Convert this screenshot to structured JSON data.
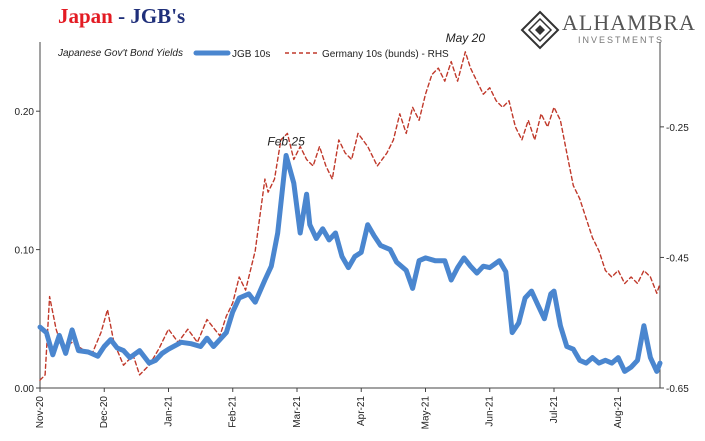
{
  "header": {
    "title_part1": "Japan",
    "title_part2": "- JGB's",
    "logo_name": "ALHAMBRA",
    "logo_sub": "INVESTMENTS"
  },
  "colors": {
    "jgb": "#4a86cf",
    "bund": "#c0392b",
    "axis": "#444444",
    "title_red": "#e31b23",
    "title_blue": "#1f2f7a"
  },
  "chart_data": {
    "type": "line",
    "subtitle": "Japanese Gov't Bond Yields",
    "legend_position": "top",
    "grid": false,
    "x_tick_labels": [
      "Nov-20",
      "Dec-20",
      "Jan-21",
      "Feb-21",
      "Mar-21",
      "Apr-21",
      "May-21",
      "Jun-21",
      "Jul-21",
      "Aug-21"
    ],
    "left_axis": {
      "ylim": [
        0.0,
        0.25
      ],
      "ticks": [
        0.0,
        0.1,
        0.2
      ],
      "tick_labels": [
        "0.00",
        "0.10",
        "0.20"
      ]
    },
    "right_axis": {
      "ylim": [
        -0.65,
        -0.12
      ],
      "ticks": [
        -0.65,
        -0.45,
        -0.25
      ],
      "tick_labels": [
        "-0.65",
        "-0.45",
        "-0.25"
      ]
    },
    "annotations": [
      {
        "text": "Feb 25",
        "x": 3.83,
        "y": 0.168,
        "axis": "left"
      },
      {
        "text": "May 20",
        "x": 6.62,
        "y": -0.135,
        "axis": "right"
      }
    ],
    "series": [
      {
        "name": "JGB 10s",
        "axis": "left",
        "style": "solid",
        "points": [
          [
            0.0,
            0.044
          ],
          [
            0.1,
            0.04
          ],
          [
            0.2,
            0.024
          ],
          [
            0.3,
            0.038
          ],
          [
            0.4,
            0.025
          ],
          [
            0.5,
            0.042
          ],
          [
            0.6,
            0.027
          ],
          [
            0.75,
            0.026
          ],
          [
            0.9,
            0.023
          ],
          [
            1.0,
            0.03
          ],
          [
            1.1,
            0.035
          ],
          [
            1.2,
            0.029
          ],
          [
            1.3,
            0.027
          ],
          [
            1.4,
            0.022
          ],
          [
            1.55,
            0.027
          ],
          [
            1.7,
            0.018
          ],
          [
            1.8,
            0.02
          ],
          [
            1.9,
            0.025
          ],
          [
            2.0,
            0.028
          ],
          [
            2.2,
            0.033
          ],
          [
            2.35,
            0.032
          ],
          [
            2.5,
            0.03
          ],
          [
            2.6,
            0.036
          ],
          [
            2.7,
            0.03
          ],
          [
            2.8,
            0.035
          ],
          [
            2.9,
            0.04
          ],
          [
            3.0,
            0.055
          ],
          [
            3.1,
            0.065
          ],
          [
            3.25,
            0.068
          ],
          [
            3.35,
            0.062
          ],
          [
            3.5,
            0.078
          ],
          [
            3.6,
            0.088
          ],
          [
            3.7,
            0.112
          ],
          [
            3.83,
            0.168
          ],
          [
            3.95,
            0.148
          ],
          [
            4.05,
            0.112
          ],
          [
            4.15,
            0.14
          ],
          [
            4.2,
            0.118
          ],
          [
            4.3,
            0.108
          ],
          [
            4.4,
            0.115
          ],
          [
            4.5,
            0.107
          ],
          [
            4.6,
            0.112
          ],
          [
            4.7,
            0.095
          ],
          [
            4.8,
            0.087
          ],
          [
            4.9,
            0.095
          ],
          [
            5.0,
            0.098
          ],
          [
            5.1,
            0.118
          ],
          [
            5.2,
            0.11
          ],
          [
            5.3,
            0.103
          ],
          [
            5.45,
            0.1
          ],
          [
            5.55,
            0.091
          ],
          [
            5.7,
            0.085
          ],
          [
            5.8,
            0.072
          ],
          [
            5.9,
            0.092
          ],
          [
            6.0,
            0.094
          ],
          [
            6.15,
            0.092
          ],
          [
            6.3,
            0.092
          ],
          [
            6.4,
            0.078
          ],
          [
            6.5,
            0.087
          ],
          [
            6.6,
            0.094
          ],
          [
            6.7,
            0.088
          ],
          [
            6.8,
            0.083
          ],
          [
            6.9,
            0.088
          ],
          [
            7.0,
            0.087
          ],
          [
            7.15,
            0.092
          ],
          [
            7.25,
            0.084
          ],
          [
            7.35,
            0.04
          ],
          [
            7.45,
            0.047
          ],
          [
            7.55,
            0.065
          ],
          [
            7.65,
            0.07
          ],
          [
            7.75,
            0.06
          ],
          [
            7.85,
            0.05
          ],
          [
            7.95,
            0.068
          ],
          [
            8.0,
            0.07
          ],
          [
            8.1,
            0.045
          ],
          [
            8.2,
            0.03
          ],
          [
            8.3,
            0.028
          ],
          [
            8.4,
            0.02
          ],
          [
            8.5,
            0.018
          ],
          [
            8.6,
            0.022
          ],
          [
            8.7,
            0.018
          ],
          [
            8.8,
            0.02
          ],
          [
            8.9,
            0.018
          ],
          [
            9.0,
            0.022
          ],
          [
            9.1,
            0.012
          ],
          [
            9.2,
            0.015
          ],
          [
            9.3,
            0.02
          ],
          [
            9.4,
            0.045
          ],
          [
            9.5,
            0.022
          ],
          [
            9.6,
            0.012
          ],
          [
            9.65,
            0.018
          ]
        ]
      },
      {
        "name": "Germany 10s (bunds) - RHS",
        "axis": "right",
        "style": "dashed",
        "points": [
          [
            0.0,
            -0.638
          ],
          [
            0.08,
            -0.63
          ],
          [
            0.15,
            -0.51
          ],
          [
            0.25,
            -0.56
          ],
          [
            0.35,
            -0.59
          ],
          [
            0.5,
            -0.58
          ],
          [
            0.65,
            -0.59
          ],
          [
            0.8,
            -0.6
          ],
          [
            0.95,
            -0.565
          ],
          [
            1.05,
            -0.53
          ],
          [
            1.15,
            -0.58
          ],
          [
            1.3,
            -0.615
          ],
          [
            1.45,
            -0.6
          ],
          [
            1.55,
            -0.63
          ],
          [
            1.7,
            -0.615
          ],
          [
            1.85,
            -0.59
          ],
          [
            2.0,
            -0.56
          ],
          [
            2.15,
            -0.58
          ],
          [
            2.3,
            -0.56
          ],
          [
            2.45,
            -0.58
          ],
          [
            2.6,
            -0.545
          ],
          [
            2.8,
            -0.57
          ],
          [
            2.9,
            -0.54
          ],
          [
            3.0,
            -0.52
          ],
          [
            3.1,
            -0.48
          ],
          [
            3.2,
            -0.5
          ],
          [
            3.35,
            -0.44
          ],
          [
            3.5,
            -0.33
          ],
          [
            3.55,
            -0.35
          ],
          [
            3.65,
            -0.33
          ],
          [
            3.75,
            -0.27
          ],
          [
            3.85,
            -0.26
          ],
          [
            3.95,
            -0.3
          ],
          [
            4.05,
            -0.28
          ],
          [
            4.15,
            -0.3
          ],
          [
            4.25,
            -0.31
          ],
          [
            4.35,
            -0.28
          ],
          [
            4.45,
            -0.31
          ],
          [
            4.55,
            -0.33
          ],
          [
            4.65,
            -0.27
          ],
          [
            4.75,
            -0.29
          ],
          [
            4.85,
            -0.3
          ],
          [
            4.95,
            -0.26
          ],
          [
            5.1,
            -0.28
          ],
          [
            5.25,
            -0.31
          ],
          [
            5.4,
            -0.29
          ],
          [
            5.5,
            -0.27
          ],
          [
            5.6,
            -0.23
          ],
          [
            5.7,
            -0.26
          ],
          [
            5.8,
            -0.22
          ],
          [
            5.9,
            -0.24
          ],
          [
            6.0,
            -0.2
          ],
          [
            6.1,
            -0.17
          ],
          [
            6.2,
            -0.16
          ],
          [
            6.3,
            -0.18
          ],
          [
            6.4,
            -0.15
          ],
          [
            6.5,
            -0.18
          ],
          [
            6.62,
            -0.135
          ],
          [
            6.7,
            -0.16
          ],
          [
            6.8,
            -0.18
          ],
          [
            6.9,
            -0.2
          ],
          [
            7.0,
            -0.19
          ],
          [
            7.1,
            -0.21
          ],
          [
            7.2,
            -0.22
          ],
          [
            7.3,
            -0.21
          ],
          [
            7.4,
            -0.25
          ],
          [
            7.5,
            -0.27
          ],
          [
            7.6,
            -0.24
          ],
          [
            7.7,
            -0.27
          ],
          [
            7.8,
            -0.23
          ],
          [
            7.9,
            -0.25
          ],
          [
            8.0,
            -0.22
          ],
          [
            8.1,
            -0.24
          ],
          [
            8.2,
            -0.29
          ],
          [
            8.3,
            -0.34
          ],
          [
            8.4,
            -0.36
          ],
          [
            8.5,
            -0.39
          ],
          [
            8.6,
            -0.42
          ],
          [
            8.7,
            -0.44
          ],
          [
            8.8,
            -0.47
          ],
          [
            8.9,
            -0.48
          ],
          [
            9.0,
            -0.47
          ],
          [
            9.1,
            -0.49
          ],
          [
            9.2,
            -0.48
          ],
          [
            9.3,
            -0.49
          ],
          [
            9.4,
            -0.47
          ],
          [
            9.5,
            -0.48
          ],
          [
            9.6,
            -0.505
          ],
          [
            9.65,
            -0.49
          ]
        ]
      }
    ]
  }
}
